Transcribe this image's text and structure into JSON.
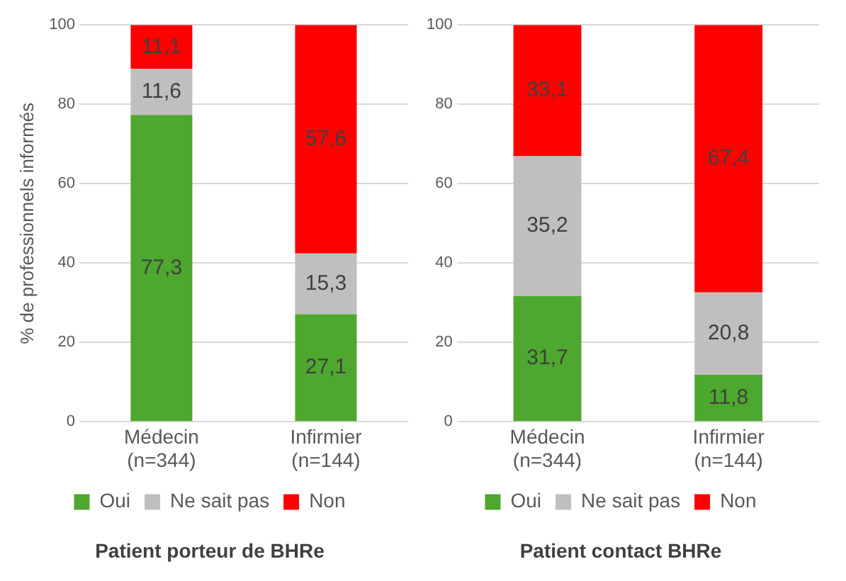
{
  "chart_data": [
    {
      "type": "bar",
      "title": "Patient porteur de BHRe",
      "ylabel": "% de professionnels informés",
      "categories": [
        "Médecin\n(n=344)",
        "Infirmier\n(n=144)"
      ],
      "stacked": true,
      "ylim": [
        0,
        100
      ],
      "yticks": [
        0,
        20,
        40,
        60,
        80,
        100
      ],
      "grid": "y",
      "legend": "bottom",
      "series": [
        {
          "name": "Oui",
          "color": "#4ea72e",
          "values": [
            77.3,
            27.1
          ],
          "value_labels": [
            "77,3",
            "27,1"
          ]
        },
        {
          "name": "Ne sait pas",
          "color": "#bfbfbf",
          "values": [
            11.6,
            15.3
          ],
          "value_labels": [
            "11,6",
            "15,3"
          ]
        },
        {
          "name": "Non",
          "color": "#ff0000",
          "values": [
            11.1,
            57.6
          ],
          "value_labels": [
            "11,1",
            "57,6"
          ]
        }
      ]
    },
    {
      "type": "bar",
      "title": "Patient contact BHRe",
      "categories": [
        "Médecin\n(n=344)",
        "Infirmier\n(n=144)"
      ],
      "stacked": true,
      "ylim": [
        0,
        100
      ],
      "yticks": [
        0,
        20,
        40,
        60,
        80,
        100
      ],
      "grid": "y",
      "legend": "bottom",
      "series": [
        {
          "name": "Oui",
          "color": "#4ea72e",
          "values": [
            31.7,
            11.8
          ],
          "value_labels": [
            "31,7",
            "11,8"
          ]
        },
        {
          "name": "Ne sait pas",
          "color": "#bfbfbf",
          "values": [
            35.2,
            20.8
          ],
          "value_labels": [
            "35,2",
            "20,8"
          ]
        },
        {
          "name": "Non",
          "color": "#ff0000",
          "values": [
            33.1,
            67.4
          ],
          "value_labels": [
            "33,1",
            "67,4"
          ]
        }
      ]
    }
  ]
}
